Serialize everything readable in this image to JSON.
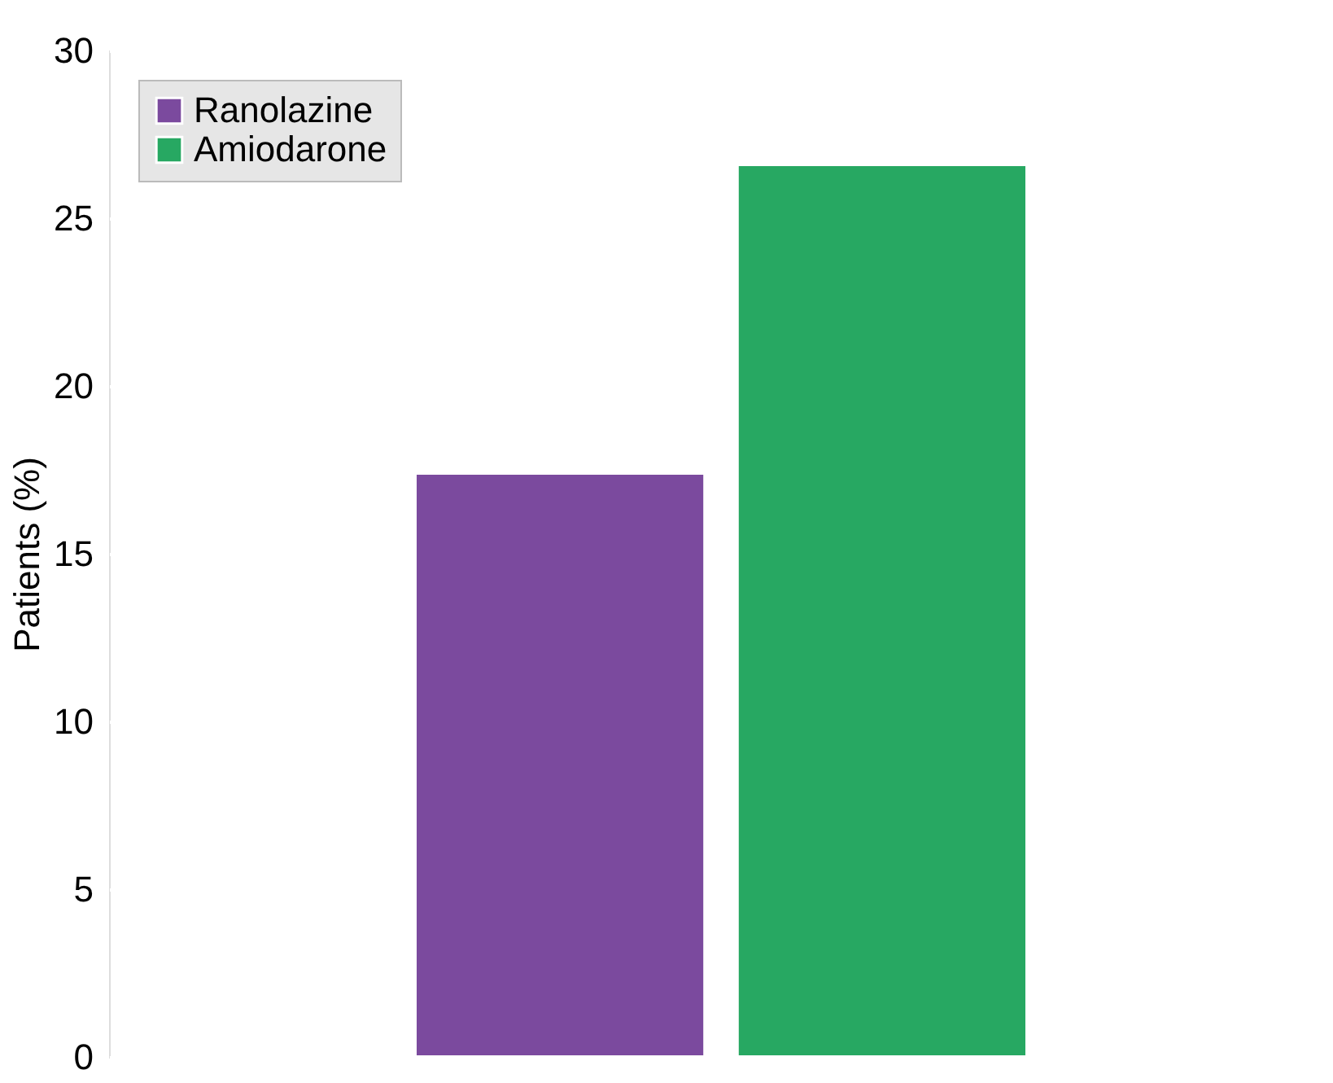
{
  "chart_data": {
    "type": "bar",
    "ylabel": "Patients (%)",
    "categories": [
      null
    ],
    "series": [
      {
        "name": "Ranolazine",
        "color": "#7b4a9e",
        "values": [
          17.4
        ]
      },
      {
        "name": "Amiodarone",
        "color": "#27a862",
        "values": [
          26.6
        ]
      }
    ],
    "ylim": [
      0,
      30
    ],
    "yticks": [
      0,
      5,
      10,
      15,
      20,
      25,
      30
    ],
    "grid": "y",
    "legend": "top left"
  }
}
